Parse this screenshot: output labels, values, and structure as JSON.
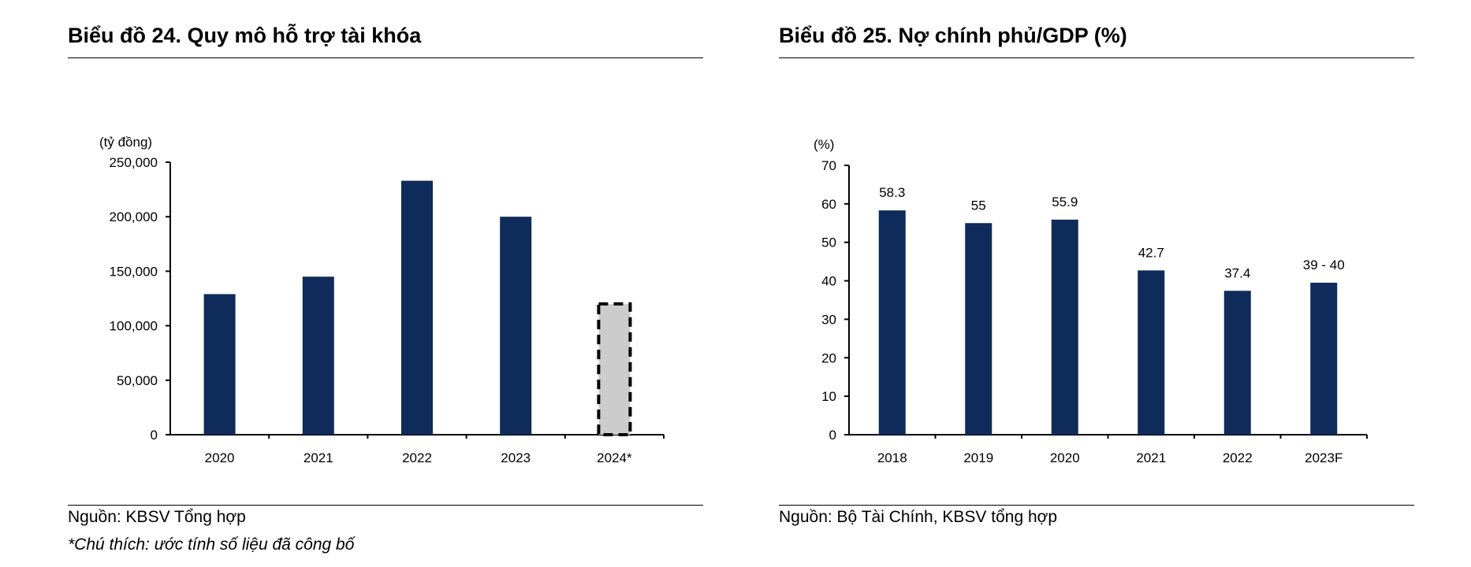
{
  "colors": {
    "bar": "#0f2b5b",
    "estimate_fill": "#cccccc",
    "axis": "#000000"
  },
  "left": {
    "title": "Biểu đồ 24. Quy mô hỗ trợ tài khóa",
    "source": "Nguồn: KBSV Tổng hợp",
    "note": "*Chú thích: ước tính số liệu đã công bố"
  },
  "right": {
    "title": "Biểu đồ 25. Nợ chính phủ/GDP (%)",
    "source": "Nguồn: Bộ Tài Chính, KBSV tổng hợp"
  },
  "chart_data": [
    {
      "type": "bar",
      "unit_label": "(tỷ đồng)",
      "categories": [
        "2020",
        "2021",
        "2022",
        "2023",
        "2024*"
      ],
      "values": [
        129000,
        145000,
        233000,
        200000,
        120000
      ],
      "estimated": [
        false,
        false,
        false,
        false,
        true
      ],
      "ylim": [
        0,
        250000
      ],
      "yticks": [
        0,
        50000,
        100000,
        150000,
        200000,
        250000
      ],
      "ytick_labels": [
        "0",
        "50,000",
        "100,000",
        "150,000",
        "200,000",
        "250,000"
      ],
      "legend": false,
      "grid": false
    },
    {
      "type": "bar",
      "unit_label": "(%)",
      "categories": [
        "2018",
        "2019",
        "2020",
        "2021",
        "2022",
        "2023F"
      ],
      "values": [
        58.3,
        55,
        55.9,
        42.7,
        37.4,
        39.5
      ],
      "data_labels": [
        "58.3",
        "55",
        "55.9",
        "42.7",
        "37.4",
        "39 - 40"
      ],
      "ylim": [
        0,
        70
      ],
      "yticks": [
        0,
        10,
        20,
        30,
        40,
        50,
        60,
        70
      ],
      "ytick_labels": [
        "0",
        "10",
        "20",
        "30",
        "40",
        "50",
        "60",
        "70"
      ],
      "legend": false,
      "grid": false
    }
  ]
}
